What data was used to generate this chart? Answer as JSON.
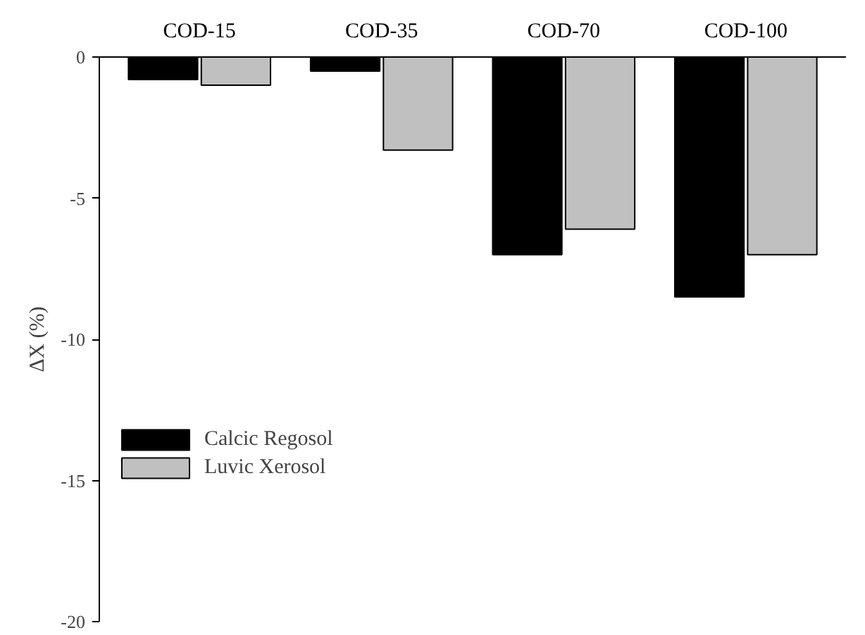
{
  "chart_data": {
    "type": "bar",
    "ylabel": "ΔX (%)",
    "categories": [
      "COD-15",
      "COD-35",
      "COD-70",
      "COD-100"
    ],
    "series": [
      {
        "name": "Calcic Regosol",
        "color": "#000000",
        "values": [
          -0.8,
          -0.5,
          -7.0,
          -8.5
        ]
      },
      {
        "name": "Luvic Xerosol",
        "color": "#c0c0c0",
        "values": [
          -1.0,
          -3.3,
          -6.1,
          -7.0
        ]
      }
    ],
    "ylim": [
      -20,
      0
    ],
    "yticks": [
      0,
      -5,
      -10,
      -15,
      -20
    ],
    "grid": false,
    "legend": "left"
  }
}
